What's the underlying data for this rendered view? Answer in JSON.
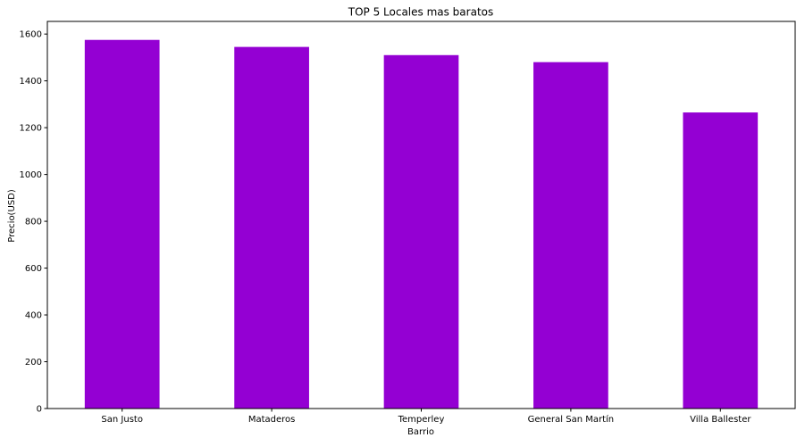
{
  "chart_data": {
    "type": "bar",
    "title": "TOP 5 Locales mas baratos",
    "xlabel": "Barrio",
    "ylabel": "Precio(USD)",
    "categories": [
      "San Justo",
      "Mataderos",
      "Temperley",
      "General San Martín",
      "Villa Ballester"
    ],
    "values": [
      1575,
      1545,
      1510,
      1480,
      1265
    ],
    "ylim": [
      0,
      1600
    ],
    "yticks": [
      "0",
      "200",
      "400",
      "600",
      "800",
      "1000",
      "1200",
      "1400",
      "1600"
    ],
    "bar_color": "#9400d3",
    "grid": false,
    "legend": "none"
  }
}
